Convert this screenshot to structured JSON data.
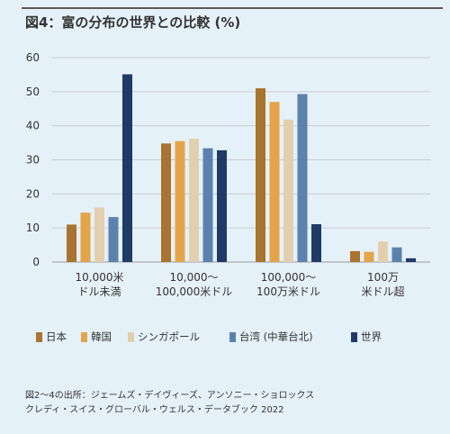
{
  "title": "図4：富の分布の世界との比較 (%)",
  "source": {
    "line1": "図2〜4の出所：ジェームズ・デイヴィーズ、アンソニー・ショロックス",
    "line2": "クレディ・スイス・グローバル・ウェルス・データブック 2022"
  },
  "chart_data": {
    "type": "bar",
    "title": "図4：富の分布の世界との比較 (%)",
    "xlabel": "",
    "ylabel": "",
    "ylim": [
      0,
      60
    ],
    "yticks": [
      "0",
      "10",
      "20",
      "30",
      "40",
      "50",
      "60"
    ],
    "grid": true,
    "legend_position": "bottom",
    "categories": [
      [
        "10,000米",
        "ドル未満"
      ],
      [
        "10,000〜",
        "100,000米ドル"
      ],
      [
        "100,000〜",
        "100万米ドル"
      ],
      [
        "100万",
        "米ドル超"
      ]
    ],
    "series": [
      {
        "name": "日本",
        "color": "#a8742f",
        "values": [
          11,
          34.8,
          51,
          3.2
        ]
      },
      {
        "name": "韓国",
        "color": "#e5a44a",
        "values": [
          14.5,
          35.5,
          47,
          3
        ]
      },
      {
        "name": "シンガポール",
        "color": "#e3cfad",
        "values": [
          16,
          36.2,
          41.8,
          6
        ]
      },
      {
        "name": "台湾 (中華台北)",
        "color": "#5b82ad",
        "values": [
          13.2,
          33.4,
          49.3,
          4.3
        ]
      },
      {
        "name": "世界",
        "color": "#1f3a66",
        "values": [
          55.1,
          32.8,
          11.1,
          1.1
        ]
      }
    ]
  }
}
